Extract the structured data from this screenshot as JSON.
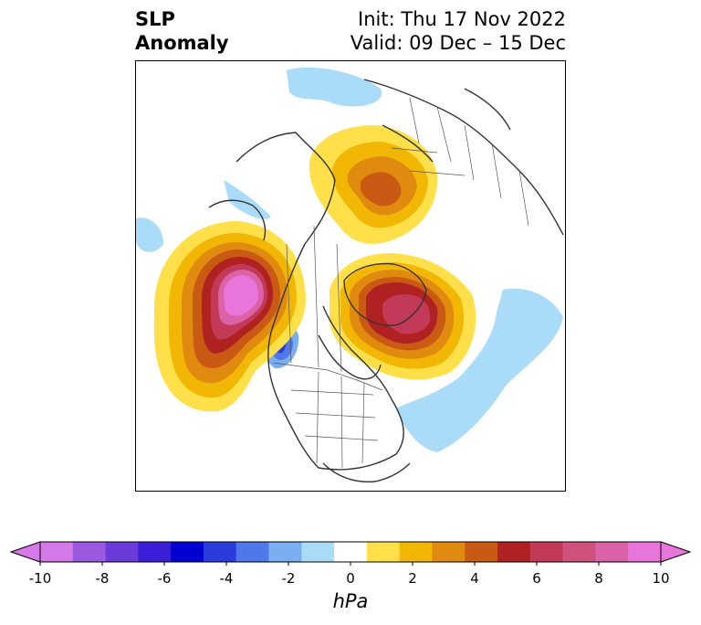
{
  "title": {
    "left_line1": "SLP",
    "left_line2": "Anomaly",
    "right_line1": "Init: Thu 17 Nov 2022",
    "right_line2": "Valid: 09 Dec – 15 Dec"
  },
  "map": {
    "field": "sea level pressure anomaly",
    "projection": "north polar stereographic",
    "features": [
      {
        "kind": "positive-anomaly",
        "location": "Gulf of Alaska",
        "peak_hpa": 9
      },
      {
        "kind": "positive-anomaly",
        "location": "Greenland / Baffin Bay",
        "peak_hpa": 6
      },
      {
        "kind": "positive-anomaly",
        "location": "Northern Siberia / Kara Sea",
        "peak_hpa": 4
      },
      {
        "kind": "negative-anomaly",
        "location": "Pacific Northwest coast",
        "peak_hpa": -5
      },
      {
        "kind": "negative-anomaly",
        "location": "North Atlantic",
        "peak_hpa": -1
      }
    ]
  },
  "colorbar": {
    "unit": "hPa",
    "ticks": [
      "-10",
      "-8",
      "-6",
      "-4",
      "-2",
      "0",
      "2",
      "4",
      "6",
      "8",
      "10"
    ],
    "colors": [
      "#d578e8",
      "#9d58e0",
      "#6a3bd8",
      "#3a1ed8",
      "#0000d0",
      "#2a3ddc",
      "#4f78e8",
      "#7aaef0",
      "#aadcfa",
      "#ffffff",
      "#ffe04a",
      "#f2b705",
      "#e08b0f",
      "#c95a14",
      "#b02222",
      "#c23a57",
      "#cf527c",
      "#dc62a8",
      "#e875da"
    ],
    "extend_min_color": "#d578e8",
    "extend_max_color": "#e875da"
  }
}
